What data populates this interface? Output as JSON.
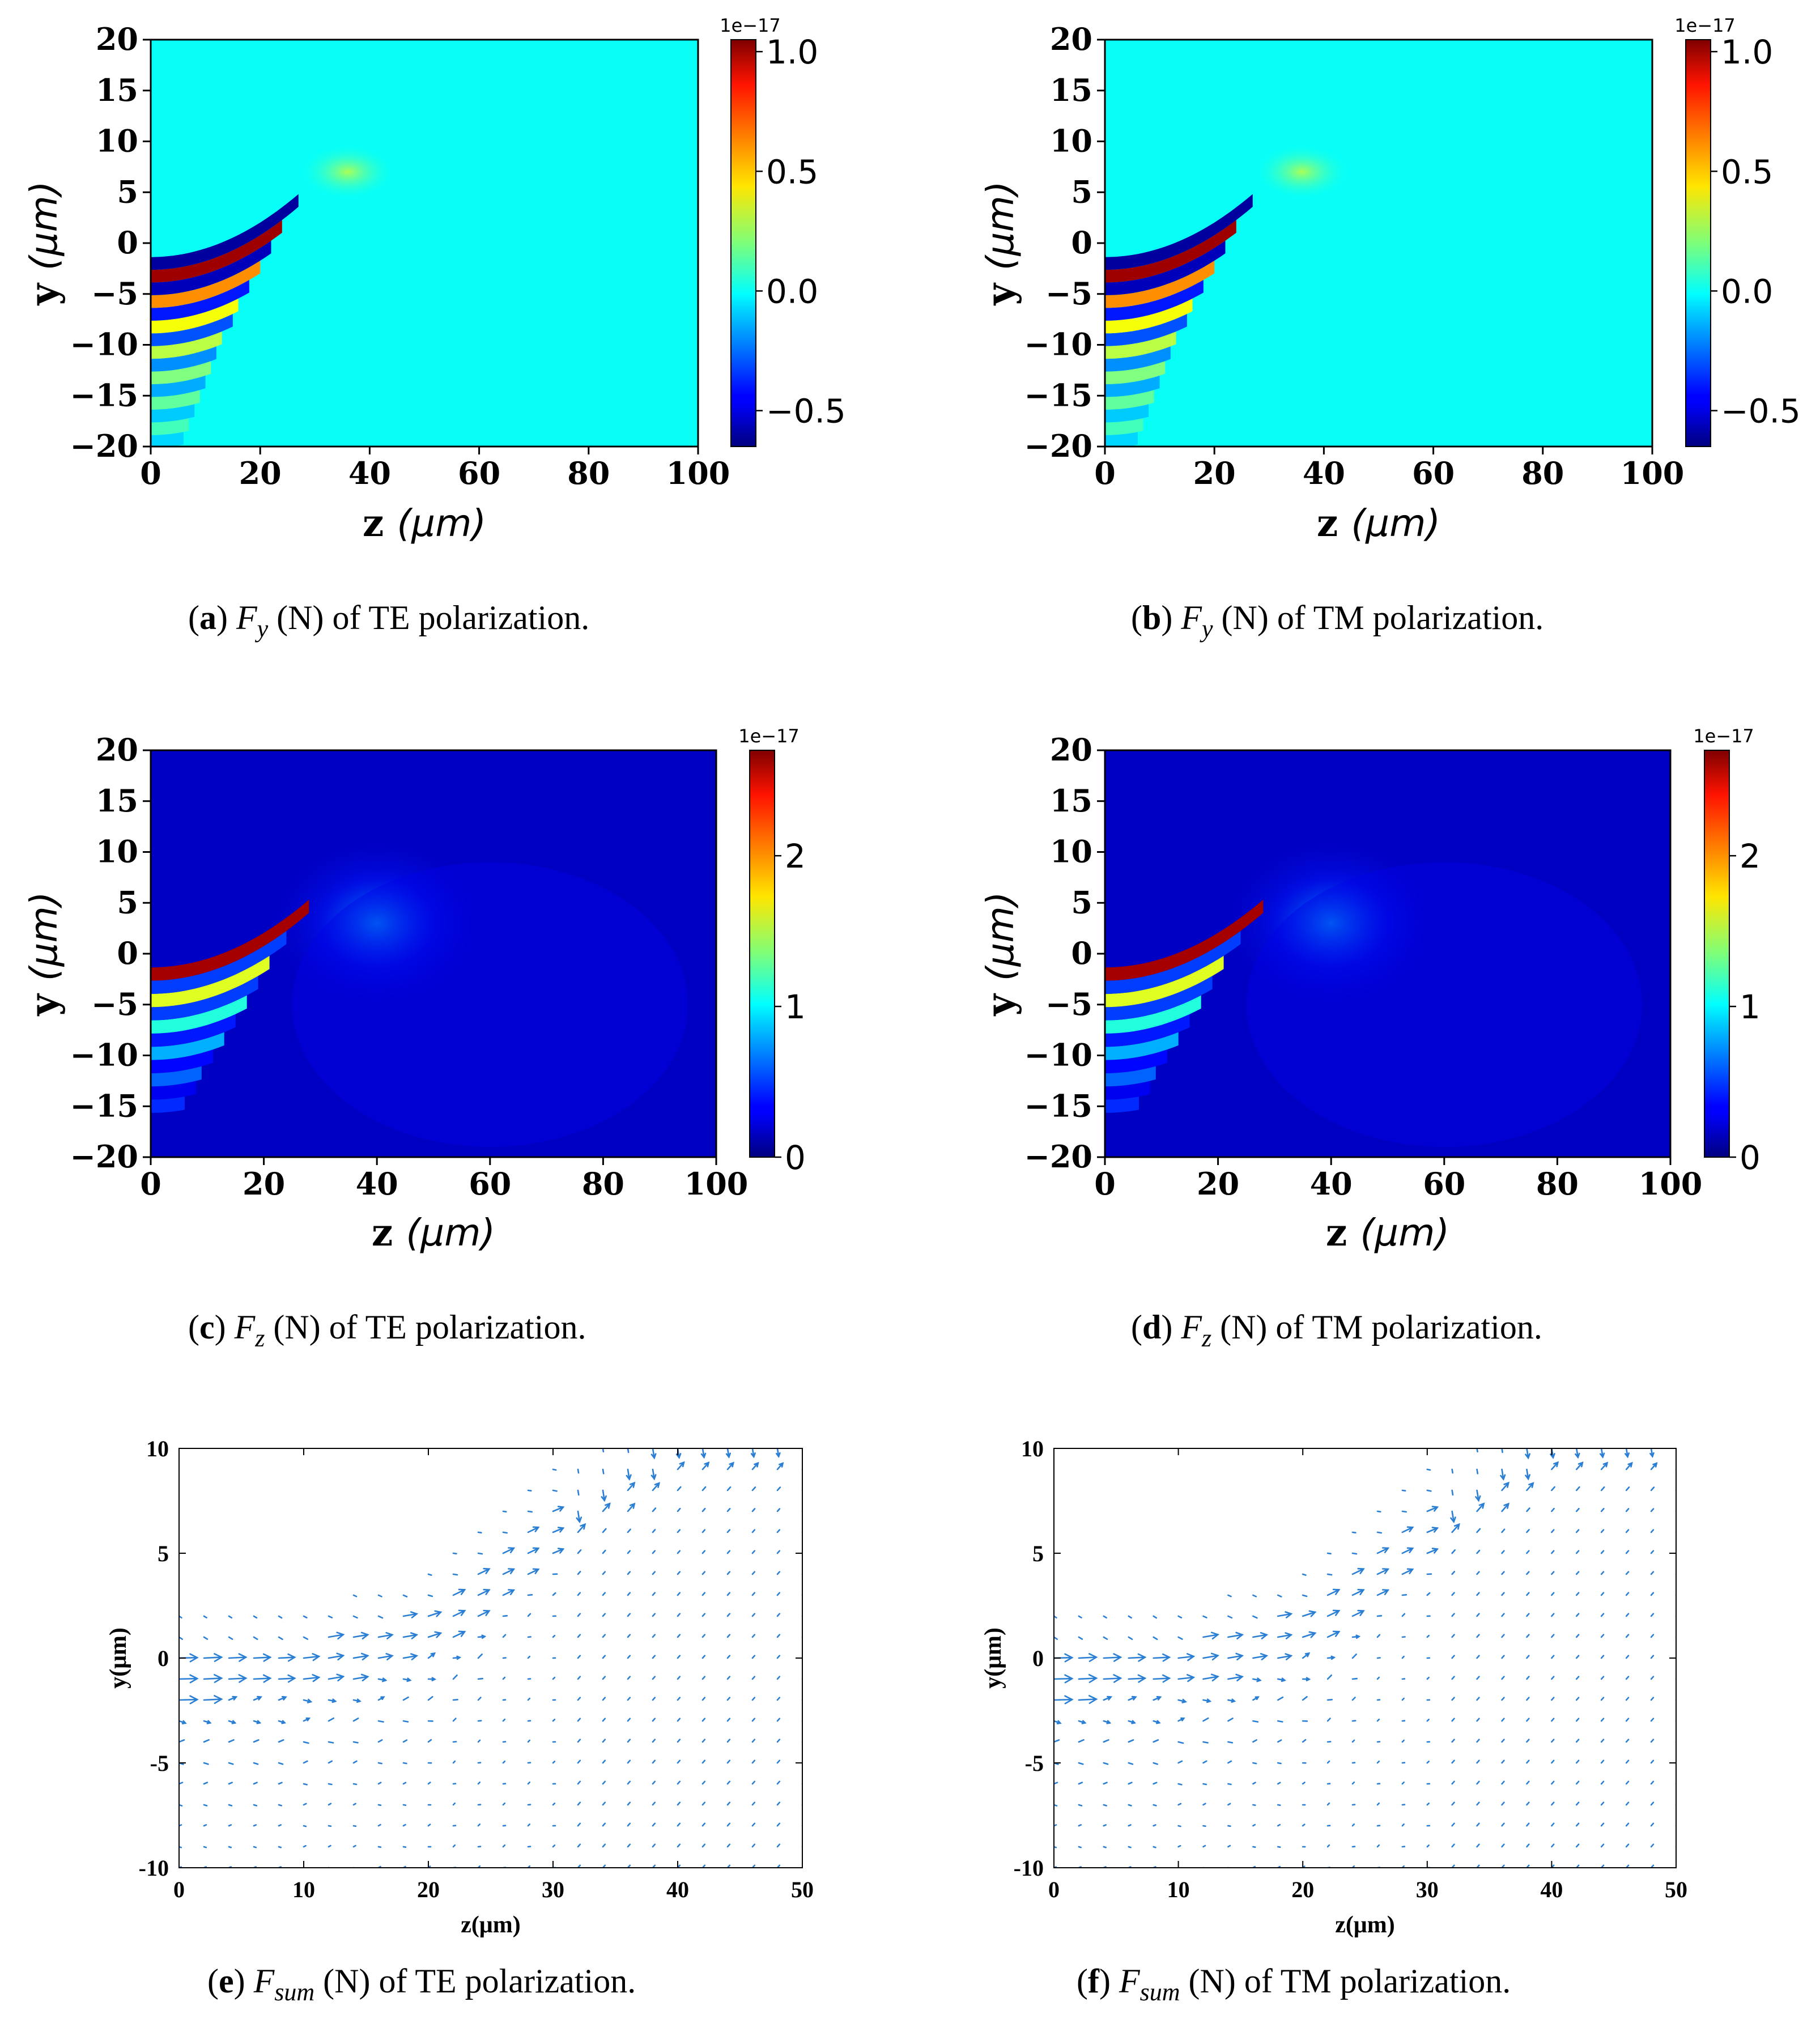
{
  "panels": [
    {
      "id": "a",
      "caption": {
        "letter": "a",
        "symbol": "F",
        "subscript": "y",
        "unit": "(N)",
        "rest": "of TE polarization."
      },
      "chart_data": {
        "type": "heatmap",
        "field": "Fy",
        "polarization": "TE",
        "xlabel_var": "z",
        "xlabel_unit": "(μm)",
        "ylabel_var": "y",
        "ylabel_unit": "(μm)",
        "xlim": [
          0,
          100
        ],
        "ylim": [
          -20,
          20
        ],
        "xticks": [
          "0",
          "20",
          "40",
          "60",
          "80",
          "100"
        ],
        "yticks": [
          "20",
          "15",
          "10",
          "5",
          "0",
          "−5",
          "−10",
          "−15",
          "−20"
        ],
        "colorbar": {
          "multiplier": "1e−17",
          "ticks": [
            "1.0",
            "0.5",
            "0.0",
            "−0.5"
          ],
          "tick_values": [
            1.0,
            0.5,
            0.0,
            -0.5
          ],
          "range": [
            -0.65,
            1.05
          ],
          "cmap": "jet"
        },
        "background_value": 0.0,
        "fringe_values": [
          -0.6,
          1.0,
          -0.55,
          0.6,
          -0.4,
          0.4,
          -0.3,
          0.3,
          -0.2,
          0.2,
          -0.15,
          0.15,
          -0.1,
          0.1,
          -0.08,
          0.08
        ],
        "fringe_end_z": [
          27,
          24,
          22,
          20,
          18,
          16,
          15,
          13,
          12,
          11,
          10,
          9,
          8,
          7,
          6,
          5
        ]
      }
    },
    {
      "id": "b",
      "caption": {
        "letter": "b",
        "symbol": "F",
        "subscript": "y",
        "unit": "(N)",
        "rest": "of TM polarization."
      },
      "chart_data": {
        "type": "heatmap",
        "field": "Fy",
        "polarization": "TM",
        "xlabel_var": "z",
        "xlabel_unit": "(μm)",
        "ylabel_var": "y",
        "ylabel_unit": "(μm)",
        "xlim": [
          0,
          100
        ],
        "ylim": [
          -20,
          20
        ],
        "xticks": [
          "0",
          "20",
          "40",
          "60",
          "80",
          "100"
        ],
        "yticks": [
          "20",
          "15",
          "10",
          "5",
          "0",
          "−5",
          "−10",
          "−15",
          "−20"
        ],
        "colorbar": {
          "multiplier": "1e−17",
          "ticks": [
            "1.0",
            "0.5",
            "0.0",
            "−0.5"
          ],
          "tick_values": [
            1.0,
            0.5,
            0.0,
            -0.5
          ],
          "range": [
            -0.65,
            1.05
          ],
          "cmap": "jet"
        },
        "background_value": 0.0,
        "fringe_values": [
          -0.6,
          1.0,
          -0.55,
          0.6,
          -0.4,
          0.4,
          -0.3,
          0.3,
          -0.2,
          0.2,
          -0.15,
          0.15,
          -0.1,
          0.1,
          -0.08,
          0.08
        ],
        "fringe_end_z": [
          27,
          24,
          22,
          20,
          18,
          16,
          15,
          13,
          12,
          11,
          10,
          9,
          8,
          7,
          6,
          5
        ]
      }
    },
    {
      "id": "c",
      "caption": {
        "letter": "c",
        "symbol": "F",
        "subscript": "z",
        "unit": "(N)",
        "rest": "of TE polarization."
      },
      "chart_data": {
        "type": "heatmap",
        "field": "Fz",
        "polarization": "TE",
        "xlabel_var": "z",
        "xlabel_unit": "(μm)",
        "ylabel_var": "y",
        "ylabel_unit": "(μm)",
        "xlim": [
          0,
          100
        ],
        "ylim": [
          -20,
          20
        ],
        "xticks": [
          "0",
          "20",
          "40",
          "60",
          "80",
          "100"
        ],
        "yticks": [
          "20",
          "15",
          "10",
          "5",
          "0",
          "−5",
          "−10",
          "−15",
          "−20"
        ],
        "colorbar": {
          "multiplier": "1e−17",
          "ticks": [
            "2",
            "1",
            "0"
          ],
          "tick_values": [
            2,
            1,
            0
          ],
          "range": [
            0,
            2.7
          ],
          "cmap": "jet"
        },
        "background_value": 0.18,
        "fringe_values": [
          2.6,
          0.5,
          1.6,
          0.5,
          1.1,
          0.4,
          0.8,
          0.35,
          0.6,
          0.3,
          0.45
        ],
        "fringe_end_z": [
          28,
          24,
          21,
          19,
          17,
          15,
          13,
          11,
          9,
          8,
          6
        ]
      }
    },
    {
      "id": "d",
      "caption": {
        "letter": "d",
        "symbol": "F",
        "subscript": "z",
        "unit": "(N)",
        "rest": "of TM polarization."
      },
      "chart_data": {
        "type": "heatmap",
        "field": "Fz",
        "polarization": "TM",
        "xlabel_var": "z",
        "xlabel_unit": "(μm)",
        "ylabel_var": "y",
        "ylabel_unit": "(μm)",
        "xlim": [
          0,
          100
        ],
        "ylim": [
          -20,
          20
        ],
        "xticks": [
          "0",
          "20",
          "40",
          "60",
          "80",
          "100"
        ],
        "yticks": [
          "20",
          "15",
          "10",
          "5",
          "0",
          "−5",
          "−10",
          "−15",
          "−20"
        ],
        "colorbar": {
          "multiplier": "1e−17",
          "ticks": [
            "2",
            "1",
            "0"
          ],
          "tick_values": [
            2,
            1,
            0
          ],
          "range": [
            0,
            2.7
          ],
          "cmap": "jet"
        },
        "background_value": 0.18,
        "fringe_values": [
          2.6,
          0.5,
          1.6,
          0.5,
          1.1,
          0.4,
          0.8,
          0.35,
          0.6,
          0.3,
          0.45
        ],
        "fringe_end_z": [
          28,
          24,
          21,
          19,
          17,
          15,
          13,
          11,
          9,
          8,
          6
        ]
      }
    },
    {
      "id": "e",
      "caption": {
        "letter": "e",
        "symbol": "F",
        "subscript": "sum",
        "unit": "(N)",
        "rest": "of TE polarization."
      },
      "chart_data": {
        "type": "quiver",
        "field": "Fsum",
        "polarization": "TE",
        "xlabel": "z(μm)",
        "ylabel": "y(μm)",
        "xlim": [
          0,
          50
        ],
        "ylim": [
          -10,
          10
        ],
        "xticks": [
          "0",
          "10",
          "20",
          "30",
          "40",
          "50"
        ],
        "yticks": [
          "10",
          "5",
          "0",
          "-5",
          "-10"
        ],
        "color": "#2a7fd4",
        "grid_dz": 2,
        "grid_dy": 1,
        "beam_center_profile": {
          "z": [
            0,
            10,
            20,
            30,
            40,
            50
          ],
          "y": [
            -1,
            -0.5,
            1.2,
            6,
            9.5,
            10
          ]
        }
      }
    },
    {
      "id": "f",
      "caption": {
        "letter": "f",
        "symbol": "F",
        "subscript": "sum",
        "unit": "(N)",
        "rest": "of TM polarization."
      },
      "chart_data": {
        "type": "quiver",
        "field": "Fsum",
        "polarization": "TM",
        "xlabel": "z(μm)",
        "ylabel": "y(μm)",
        "xlim": [
          0,
          50
        ],
        "ylim": [
          -10,
          10
        ],
        "xticks": [
          "0",
          "10",
          "20",
          "30",
          "40",
          "50"
        ],
        "yticks": [
          "10",
          "5",
          "0",
          "-5",
          "-10"
        ],
        "color": "#2a7fd4",
        "grid_dz": 2,
        "grid_dy": 1,
        "beam_center_profile": {
          "z": [
            0,
            10,
            20,
            30,
            40,
            50
          ],
          "y": [
            -1,
            -0.5,
            1.2,
            6,
            9.5,
            10
          ]
        }
      }
    }
  ]
}
